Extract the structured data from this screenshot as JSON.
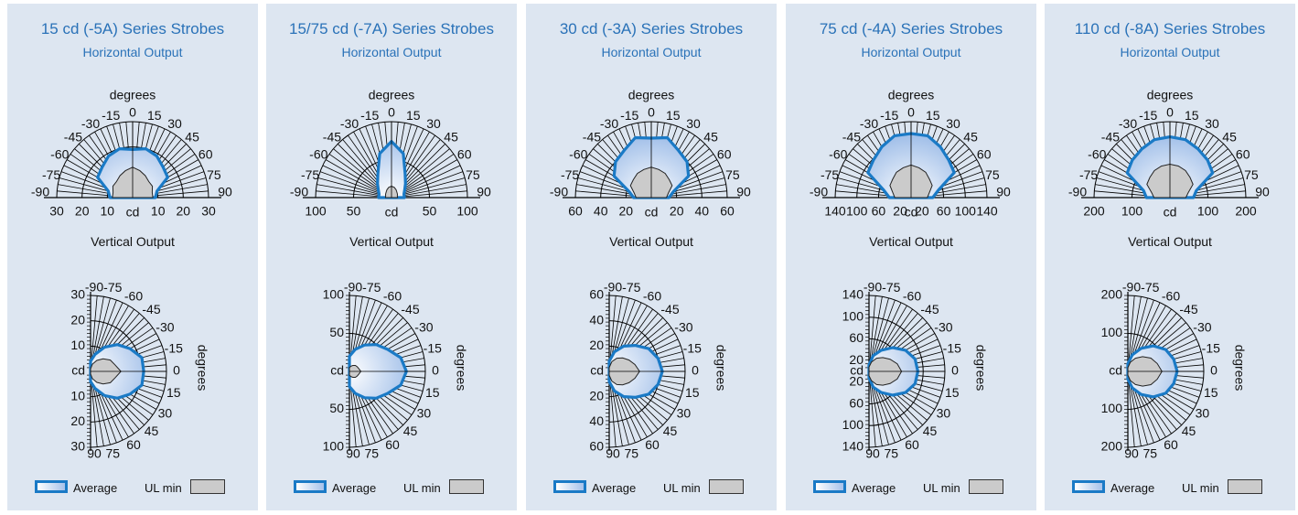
{
  "legend": {
    "average": "Average",
    "ul_min": "UL min"
  },
  "labels": {
    "horizontal_subtitle": "Horizontal Output",
    "vertical_title": "Vertical Output",
    "degrees": "degrees",
    "center_unit": "cd"
  },
  "colors": {
    "panel_bg": "#dde6f1",
    "title": "#2a72b8",
    "average_line": "#1a7ac6",
    "ul_fill": "#cbcbcb"
  },
  "chart_data": [
    {
      "type": "polar",
      "title": "15 cd (-5A) Series Strobes",
      "max": 30,
      "radial_ticks": [
        10,
        20,
        30
      ],
      "angle_ticks": [
        -90,
        -75,
        -60,
        -45,
        -30,
        -15,
        0,
        15,
        30,
        45,
        60,
        75,
        90
      ],
      "horizontal": {
        "average": [
          [
            -90,
            9
          ],
          [
            -75,
            10
          ],
          [
            -60,
            16
          ],
          [
            -45,
            17
          ],
          [
            -30,
            19
          ],
          [
            -15,
            20
          ],
          [
            0,
            19
          ],
          [
            15,
            20
          ],
          [
            30,
            19
          ],
          [
            45,
            17
          ],
          [
            60,
            16
          ],
          [
            75,
            10
          ],
          [
            90,
            9
          ]
        ],
        "ul_min": [
          [
            -90,
            8
          ],
          [
            -75,
            8
          ],
          [
            -60,
            9
          ],
          [
            -45,
            9
          ],
          [
            -30,
            10
          ],
          [
            -15,
            11
          ],
          [
            0,
            12
          ],
          [
            15,
            11
          ],
          [
            30,
            10
          ],
          [
            45,
            9
          ],
          [
            60,
            9
          ],
          [
            75,
            8
          ],
          [
            90,
            8
          ]
        ]
      },
      "vertical": {
        "average": [
          [
            -90,
            4
          ],
          [
            -75,
            7
          ],
          [
            -60,
            11
          ],
          [
            -45,
            15
          ],
          [
            -30,
            18
          ],
          [
            -15,
            21
          ],
          [
            0,
            21
          ],
          [
            15,
            21
          ],
          [
            30,
            18
          ],
          [
            45,
            15
          ],
          [
            60,
            11
          ],
          [
            75,
            7
          ],
          [
            90,
            4
          ]
        ],
        "ul_min": [
          [
            -90,
            1
          ],
          [
            -75,
            3
          ],
          [
            -60,
            5
          ],
          [
            -45,
            7
          ],
          [
            -30,
            9
          ],
          [
            -15,
            10
          ],
          [
            0,
            12
          ],
          [
            15,
            10
          ],
          [
            30,
            9
          ],
          [
            45,
            7
          ],
          [
            60,
            5
          ],
          [
            75,
            3
          ],
          [
            90,
            1
          ]
        ]
      }
    },
    {
      "type": "polar",
      "title": "15/75 cd (-7A) Series Strobes",
      "max": 100,
      "radial_ticks": [
        50,
        100
      ],
      "radial_tick_labels": [
        "50",
        "100"
      ],
      "angle_ticks": [
        -90,
        -75,
        -60,
        -45,
        -30,
        -15,
        0,
        15,
        30,
        45,
        60,
        75,
        90
      ],
      "horizontal": {
        "average": [
          [
            -90,
            17
          ],
          [
            -75,
            17
          ],
          [
            -60,
            20
          ],
          [
            -45,
            26
          ],
          [
            -30,
            36
          ],
          [
            -15,
            60
          ],
          [
            0,
            74
          ],
          [
            15,
            60
          ],
          [
            30,
            36
          ],
          [
            45,
            26
          ],
          [
            60,
            20
          ],
          [
            75,
            17
          ],
          [
            90,
            17
          ]
        ],
        "ul_min": [
          [
            -90,
            8
          ],
          [
            -75,
            8
          ],
          [
            -60,
            9
          ],
          [
            -45,
            10
          ],
          [
            -30,
            12
          ],
          [
            -15,
            14
          ],
          [
            0,
            15
          ],
          [
            15,
            14
          ],
          [
            30,
            12
          ],
          [
            45,
            10
          ],
          [
            60,
            9
          ],
          [
            75,
            8
          ],
          [
            90,
            8
          ]
        ]
      },
      "vertical": {
        "average": [
          [
            -90,
            20
          ],
          [
            -75,
            30
          ],
          [
            -60,
            40
          ],
          [
            -45,
            50
          ],
          [
            -30,
            58
          ],
          [
            -15,
            70
          ],
          [
            0,
            75
          ],
          [
            15,
            70
          ],
          [
            30,
            58
          ],
          [
            45,
            50
          ],
          [
            60,
            40
          ],
          [
            75,
            30
          ],
          [
            90,
            20
          ]
        ],
        "ul_min": [
          [
            -90,
            5
          ],
          [
            -75,
            7
          ],
          [
            -60,
            9
          ],
          [
            -45,
            11
          ],
          [
            -30,
            12
          ],
          [
            -15,
            13
          ],
          [
            0,
            15
          ],
          [
            15,
            13
          ],
          [
            30,
            12
          ],
          [
            45,
            11
          ],
          [
            60,
            9
          ],
          [
            75,
            7
          ],
          [
            90,
            5
          ]
        ]
      }
    },
    {
      "type": "polar",
      "title": "30 cd (-3A) Series Strobes",
      "max": 60,
      "radial_ticks": [
        20,
        40,
        60
      ],
      "angle_ticks": [
        -90,
        -75,
        -60,
        -45,
        -30,
        -15,
        0,
        15,
        30,
        45,
        60,
        75,
        90
      ],
      "horizontal": {
        "average": [
          [
            -90,
            14
          ],
          [
            -75,
            18
          ],
          [
            -60,
            34
          ],
          [
            -45,
            40
          ],
          [
            -30,
            43
          ],
          [
            -15,
            49
          ],
          [
            0,
            47
          ],
          [
            15,
            49
          ],
          [
            30,
            43
          ],
          [
            45,
            40
          ],
          [
            60,
            34
          ],
          [
            75,
            18
          ],
          [
            90,
            14
          ]
        ],
        "ul_min": [
          [
            -90,
            12
          ],
          [
            -75,
            14
          ],
          [
            -60,
            19
          ],
          [
            -45,
            20
          ],
          [
            -30,
            22
          ],
          [
            -15,
            23
          ],
          [
            0,
            24
          ],
          [
            15,
            23
          ],
          [
            30,
            22
          ],
          [
            45,
            20
          ],
          [
            60,
            19
          ],
          [
            75,
            14
          ],
          [
            90,
            12
          ]
        ]
      },
      "vertical": {
        "average": [
          [
            -90,
            8
          ],
          [
            -75,
            16
          ],
          [
            -60,
            23
          ],
          [
            -45,
            29
          ],
          [
            -30,
            36
          ],
          [
            -15,
            40
          ],
          [
            0,
            42
          ],
          [
            15,
            40
          ],
          [
            30,
            36
          ],
          [
            45,
            29
          ],
          [
            60,
            23
          ],
          [
            75,
            16
          ],
          [
            90,
            8
          ]
        ],
        "ul_min": [
          [
            -90,
            3
          ],
          [
            -75,
            8
          ],
          [
            -60,
            12
          ],
          [
            -45,
            15
          ],
          [
            -30,
            18
          ],
          [
            -15,
            21
          ],
          [
            0,
            24
          ],
          [
            15,
            21
          ],
          [
            30,
            18
          ],
          [
            45,
            15
          ],
          [
            60,
            12
          ],
          [
            75,
            8
          ],
          [
            90,
            3
          ]
        ]
      }
    },
    {
      "type": "polar",
      "title": "75 cd (-4A) Series Strobes",
      "max": 140,
      "radial_ticks": [
        20,
        60,
        100,
        140
      ],
      "angle_ticks": [
        -90,
        -75,
        -60,
        -45,
        -30,
        -15,
        0,
        15,
        30,
        45,
        60,
        75,
        90
      ],
      "horizontal": {
        "average": [
          [
            -90,
            40
          ],
          [
            -75,
            52
          ],
          [
            -60,
            92
          ],
          [
            -45,
            98
          ],
          [
            -30,
            108
          ],
          [
            -15,
            118
          ],
          [
            0,
            118
          ],
          [
            15,
            118
          ],
          [
            30,
            108
          ],
          [
            45,
            98
          ],
          [
            60,
            92
          ],
          [
            75,
            52
          ],
          [
            90,
            40
          ]
        ],
        "ul_min": [
          [
            -90,
            30
          ],
          [
            -75,
            35
          ],
          [
            -60,
            45
          ],
          [
            -45,
            48
          ],
          [
            -30,
            54
          ],
          [
            -15,
            57
          ],
          [
            0,
            60
          ],
          [
            15,
            57
          ],
          [
            30,
            54
          ],
          [
            45,
            48
          ],
          [
            60,
            45
          ],
          [
            75,
            35
          ],
          [
            90,
            30
          ]
        ]
      },
      "vertical": {
        "average": [
          [
            -90,
            12
          ],
          [
            -75,
            30
          ],
          [
            -60,
            45
          ],
          [
            -45,
            62
          ],
          [
            -30,
            78
          ],
          [
            -15,
            88
          ],
          [
            0,
            90
          ],
          [
            15,
            88
          ],
          [
            30,
            78
          ],
          [
            45,
            62
          ],
          [
            60,
            45
          ],
          [
            75,
            30
          ],
          [
            90,
            12
          ]
        ],
        "ul_min": [
          [
            -90,
            8
          ],
          [
            -75,
            18
          ],
          [
            -60,
            28
          ],
          [
            -45,
            36
          ],
          [
            -30,
            45
          ],
          [
            -15,
            54
          ],
          [
            0,
            60
          ],
          [
            15,
            54
          ],
          [
            30,
            45
          ],
          [
            45,
            36
          ],
          [
            60,
            28
          ],
          [
            75,
            18
          ],
          [
            90,
            8
          ]
        ]
      }
    },
    {
      "type": "polar",
      "title": "110 cd (-8A) Series Strobes",
      "max": 200,
      "radial_ticks": [
        100,
        200
      ],
      "angle_ticks": [
        -90,
        -75,
        -60,
        -45,
        -30,
        -15,
        0,
        15,
        30,
        45,
        60,
        75,
        90
      ],
      "horizontal": {
        "average": [
          [
            -90,
            62
          ],
          [
            -75,
            72
          ],
          [
            -60,
            130
          ],
          [
            -45,
            140
          ],
          [
            -30,
            148
          ],
          [
            -15,
            158
          ],
          [
            0,
            160
          ],
          [
            15,
            158
          ],
          [
            30,
            148
          ],
          [
            45,
            140
          ],
          [
            60,
            130
          ],
          [
            75,
            72
          ],
          [
            90,
            62
          ]
        ],
        "ul_min": [
          [
            -90,
            42
          ],
          [
            -75,
            50
          ],
          [
            -60,
            70
          ],
          [
            -45,
            75
          ],
          [
            -30,
            82
          ],
          [
            -15,
            86
          ],
          [
            0,
            88
          ],
          [
            15,
            86
          ],
          [
            30,
            82
          ],
          [
            45,
            75
          ],
          [
            60,
            70
          ],
          [
            75,
            50
          ],
          [
            90,
            42
          ]
        ]
      },
      "vertical": {
        "average": [
          [
            -90,
            20
          ],
          [
            -75,
            45
          ],
          [
            -60,
            70
          ],
          [
            -45,
            95
          ],
          [
            -30,
            115
          ],
          [
            -15,
            125
          ],
          [
            0,
            130
          ],
          [
            15,
            125
          ],
          [
            30,
            115
          ],
          [
            45,
            95
          ],
          [
            60,
            70
          ],
          [
            75,
            45
          ],
          [
            90,
            20
          ]
        ],
        "ul_min": [
          [
            -90,
            10
          ],
          [
            -75,
            25
          ],
          [
            -60,
            40
          ],
          [
            -45,
            55
          ],
          [
            -30,
            70
          ],
          [
            -15,
            80
          ],
          [
            0,
            90
          ],
          [
            15,
            80
          ],
          [
            30,
            70
          ],
          [
            45,
            55
          ],
          [
            60,
            40
          ],
          [
            75,
            25
          ],
          [
            90,
            10
          ]
        ]
      }
    }
  ]
}
